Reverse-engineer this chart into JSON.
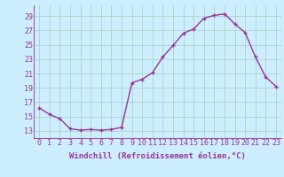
{
  "x": [
    0,
    1,
    2,
    3,
    4,
    5,
    6,
    7,
    8,
    9,
    10,
    11,
    12,
    13,
    14,
    15,
    16,
    17,
    18,
    19,
    20,
    21,
    22,
    23
  ],
  "y": [
    16.2,
    15.3,
    14.7,
    13.3,
    13.1,
    13.2,
    13.1,
    13.2,
    13.5,
    19.7,
    20.2,
    21.1,
    23.3,
    24.9,
    26.6,
    27.2,
    28.7,
    29.1,
    29.3,
    27.9,
    26.7,
    23.3,
    20.5,
    19.2
  ],
  "line_color": "#993399",
  "marker": "+",
  "marker_size": 3.5,
  "marker_lw": 1.0,
  "bg_color": "#cceeff",
  "grid_color": "#aaccbb",
  "xlabel": "Windchill (Refroidissement éolien,°C)",
  "ylabel_ticks": [
    13,
    15,
    17,
    19,
    21,
    23,
    25,
    27,
    29
  ],
  "xticks": [
    0,
    1,
    2,
    3,
    4,
    5,
    6,
    7,
    8,
    9,
    10,
    11,
    12,
    13,
    14,
    15,
    16,
    17,
    18,
    19,
    20,
    21,
    22,
    23
  ],
  "ylim": [
    12.0,
    30.5
  ],
  "xlim": [
    -0.5,
    23.5
  ],
  "xlabel_fontsize": 6.5,
  "tick_fontsize": 6.0,
  "line_width": 1.0
}
